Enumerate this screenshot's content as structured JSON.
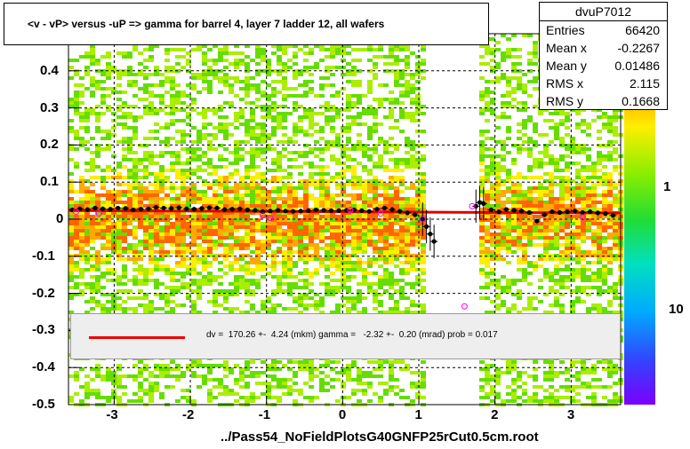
{
  "title": "<v - vP>       versus  -uP =>  gamma for barrel 4, layer 7 ladder 12, all wafers",
  "stats": {
    "name": "dvuP7012",
    "rows": [
      {
        "label": "Entries",
        "value": "66420"
      },
      {
        "label": "Mean x",
        "value": "-0.2267"
      },
      {
        "label": "Mean y",
        "value": "0.01486"
      },
      {
        "label": "RMS x",
        "value": "2.115"
      },
      {
        "label": "RMS y",
        "value": "0.1668"
      }
    ]
  },
  "fit_label": "dv =  170.26 +-  4.24 (mkm) gamma =   -2.32 +-  0.20 (mrad) prob = 0.017",
  "footer": "../Pass54_NoFieldPlotsG40GNFP25rCut0.5cm.root",
  "colors": {
    "fit_line": "#e00000",
    "points": "#000000",
    "open_markers": "#ff00ff"
  },
  "chart_data": {
    "type": "scatter",
    "title": "<v - vP>       versus  -uP =>  gamma for barrel 4, layer 7 ladder 12, all wafers",
    "xlim": [
      -3.6,
      3.65
    ],
    "ylim": [
      -0.5,
      0.5
    ],
    "x_ticks": [
      "-3",
      "-2",
      "-1",
      "0",
      "1",
      "2",
      "3"
    ],
    "y_ticks": [
      "-0.5",
      "-0.4",
      "-0.3",
      "-0.2",
      "-0.1",
      "0",
      "0.1",
      "0.2",
      "0.3",
      "0.4"
    ],
    "z_ticks": [
      "1",
      "10"
    ],
    "grid": true,
    "log_z": true,
    "fit_line": {
      "x": [
        -3.6,
        3.65
      ],
      "y": [
        0.0234,
        0.0166
      ]
    },
    "profile": {
      "x": [
        -3.55,
        -3.45,
        -3.35,
        -3.25,
        -3.15,
        -3.05,
        -2.95,
        -2.85,
        -2.75,
        -2.65,
        -2.55,
        -2.45,
        -2.35,
        -2.25,
        -2.15,
        -2.05,
        -1.95,
        -1.85,
        -1.75,
        -1.65,
        -1.55,
        -1.45,
        -1.35,
        -1.25,
        -1.15,
        -1.05,
        -0.95,
        -0.85,
        -0.75,
        -0.65,
        -0.55,
        -0.45,
        -0.35,
        -0.25,
        -0.15,
        -0.05,
        0.05,
        0.15,
        0.25,
        0.35,
        0.45,
        0.55,
        0.65,
        0.75,
        0.85,
        0.95,
        1.05,
        1.1,
        1.15,
        1.2,
        1.75,
        1.8,
        1.85,
        1.95,
        2.05,
        2.15,
        2.25,
        2.35,
        2.45,
        2.55,
        2.65,
        2.75,
        2.85,
        2.95,
        3.05,
        3.15,
        3.25,
        3.35,
        3.45,
        3.55
      ],
      "y": [
        0.025,
        0.028,
        0.026,
        0.03,
        0.028,
        0.027,
        0.03,
        0.029,
        0.025,
        0.027,
        0.028,
        0.032,
        0.03,
        0.029,
        0.031,
        0.028,
        0.027,
        0.029,
        0.031,
        0.03,
        0.026,
        0.027,
        0.028,
        0.025,
        0.024,
        0.02,
        0.022,
        0.024,
        0.022,
        0.021,
        0.022,
        0.023,
        0.025,
        0.024,
        0.023,
        0.023,
        0.024,
        0.025,
        0.023,
        0.021,
        0.027,
        0.03,
        0.026,
        0.021,
        0.017,
        0.012,
        0.0,
        -0.02,
        -0.04,
        -0.06,
        0.035,
        0.045,
        0.042,
        0.025,
        0.02,
        0.026,
        0.024,
        0.022,
        0.018,
        -0.005,
        0.012,
        0.02,
        0.018,
        0.02,
        0.022,
        0.018,
        0.02,
        0.017,
        0.015,
        0.01
      ]
    },
    "open_markers": {
      "x": [
        -3.5,
        -3.2,
        -1.05,
        -0.95,
        0.1,
        0.5,
        1.05,
        1.6,
        1.7,
        3.15
      ],
      "y": [
        0.02,
        0.015,
        0.01,
        0.003,
        0.025,
        0.015,
        0.0,
        -0.235,
        0.035,
        0.005
      ]
    }
  }
}
